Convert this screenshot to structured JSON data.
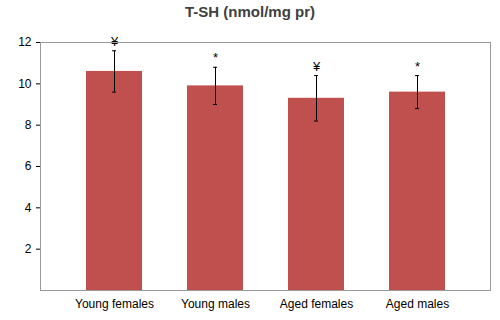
{
  "chart_data": {
    "type": "bar",
    "title": "T-SH (nmol/mg pr)",
    "categories": [
      "Young females",
      "Young males",
      "Aged females",
      "Aged males"
    ],
    "values": [
      10.6,
      9.9,
      9.3,
      9.6
    ],
    "errors": [
      1.0,
      0.9,
      1.1,
      0.8
    ],
    "significance": [
      "¥",
      "*",
      "¥",
      "*"
    ],
    "color": "#c0504d",
    "ylim": [
      0,
      12
    ],
    "yticks": [
      2,
      4,
      6,
      8,
      10,
      12
    ],
    "grid": false
  }
}
